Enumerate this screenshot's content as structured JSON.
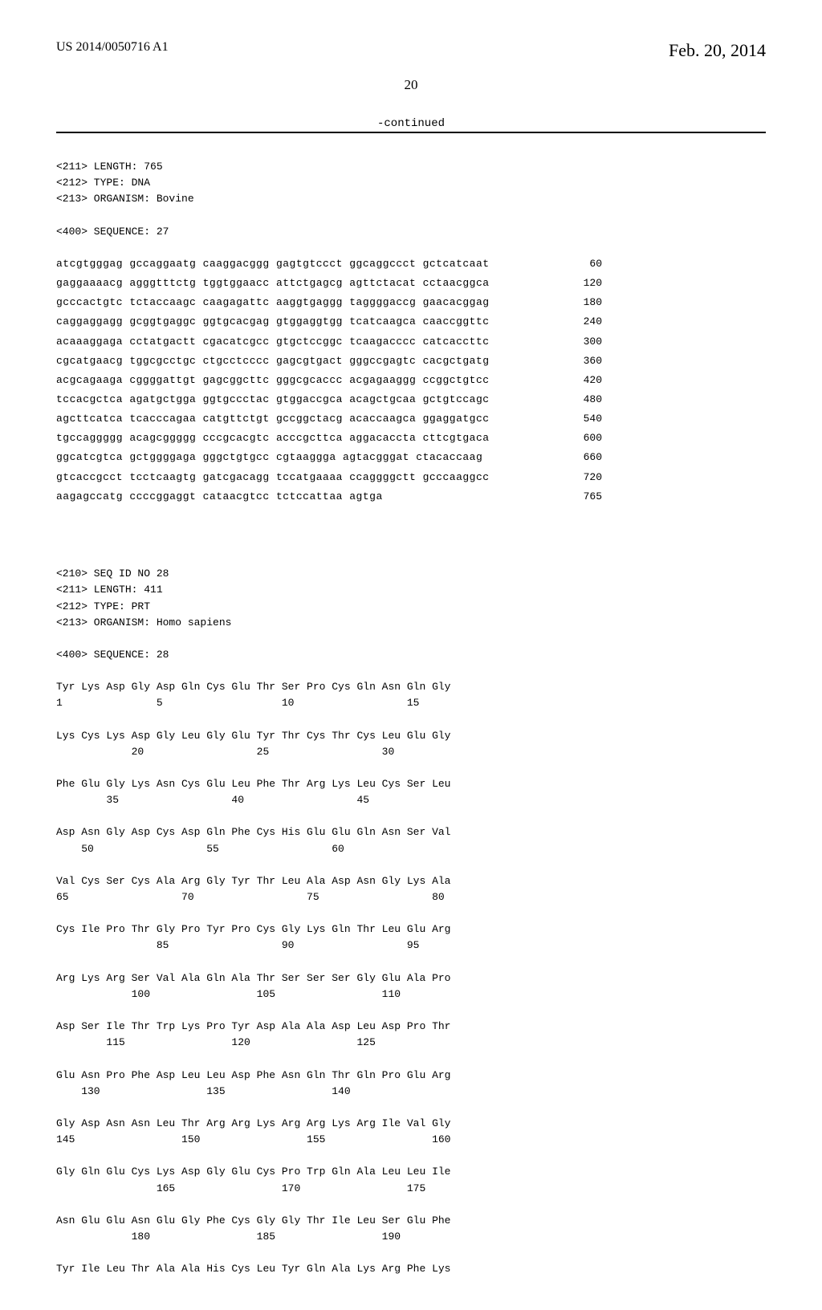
{
  "header": {
    "pub_id": "US 2014/0050716 A1",
    "pub_date": "Feb. 20, 2014",
    "page_number": "20"
  },
  "continued_label": "-continued",
  "seq27_meta": {
    "l1": "<211> LENGTH: 765",
    "l2": "<212> TYPE: DNA",
    "l3": "<213> ORGANISM: Bovine",
    "l4": "<400> SEQUENCE: 27"
  },
  "dna_lines": [
    {
      "s": "atcgtgggag gccaggaatg caaggacggg gagtgtccct ggcaggccct gctcatcaat",
      "p": "60"
    },
    {
      "s": "gaggaaaacg agggtttctg tggtggaacc attctgagcg agttctacat cctaacggca",
      "p": "120"
    },
    {
      "s": "gcccactgtc tctaccaagc caagagattc aaggtgaggg taggggaccg gaacacggag",
      "p": "180"
    },
    {
      "s": "caggaggagg gcggtgaggc ggtgcacgag gtggaggtgg tcatcaagca caaccggttc",
      "p": "240"
    },
    {
      "s": "acaaaggaga cctatgactt cgacatcgcc gtgctccggc tcaagacccc catcaccttc",
      "p": "300"
    },
    {
      "s": "cgcatgaacg tggcgcctgc ctgcctcccc gagcgtgact gggccgagtc cacgctgatg",
      "p": "360"
    },
    {
      "s": "acgcagaaga cggggattgt gagcggcttc gggcgcaccc acgagaaggg ccggctgtcc",
      "p": "420"
    },
    {
      "s": "tccacgctca agatgctgga ggtgccctac gtggaccgca acagctgcaa gctgtccagc",
      "p": "480"
    },
    {
      "s": "agcttcatca tcacccagaa catgttctgt gccggctacg acaccaagca ggaggatgcc",
      "p": "540"
    },
    {
      "s": "tgccaggggg acagcggggg cccgcacgtc acccgcttca aggacaccta cttcgtgaca",
      "p": "600"
    },
    {
      "s": "ggcatcgtca gctggggaga gggctgtgcc cgtaaggga agtacgggat ctacaccaag",
      "p": "660"
    },
    {
      "s": "gtcaccgcct tcctcaagtg gatcgacagg tccatgaaaa ccaggggctt gcccaaggcc",
      "p": "720"
    },
    {
      "s": "aagagccatg ccccggaggt cataacgtcc tctccattaa agtga",
      "p": "765"
    }
  ],
  "seq28_meta": {
    "l1": "<210> SEQ ID NO 28",
    "l2": "<211> LENGTH: 411",
    "l3": "<212> TYPE: PRT",
    "l4": "<213> ORGANISM: Homo sapiens",
    "l5": "<400> SEQUENCE: 28"
  },
  "prot_lines": [
    "Tyr Lys Asp Gly Asp Gln Cys Glu Thr Ser Pro Cys Gln Asn Gln Gly",
    "1               5                   10                  15",
    "",
    "Lys Cys Lys Asp Gly Leu Gly Glu Tyr Thr Cys Thr Cys Leu Glu Gly",
    "            20                  25                  30",
    "",
    "Phe Glu Gly Lys Asn Cys Glu Leu Phe Thr Arg Lys Leu Cys Ser Leu",
    "        35                  40                  45",
    "",
    "Asp Asn Gly Asp Cys Asp Gln Phe Cys His Glu Glu Gln Asn Ser Val",
    "    50                  55                  60",
    "",
    "Val Cys Ser Cys Ala Arg Gly Tyr Thr Leu Ala Asp Asn Gly Lys Ala",
    "65                  70                  75                  80",
    "",
    "Cys Ile Pro Thr Gly Pro Tyr Pro Cys Gly Lys Gln Thr Leu Glu Arg",
    "                85                  90                  95",
    "",
    "Arg Lys Arg Ser Val Ala Gln Ala Thr Ser Ser Ser Gly Glu Ala Pro",
    "            100                 105                 110",
    "",
    "Asp Ser Ile Thr Trp Lys Pro Tyr Asp Ala Ala Asp Leu Asp Pro Thr",
    "        115                 120                 125",
    "",
    "Glu Asn Pro Phe Asp Leu Leu Asp Phe Asn Gln Thr Gln Pro Glu Arg",
    "    130                 135                 140",
    "",
    "Gly Asp Asn Asn Leu Thr Arg Arg Lys Arg Arg Lys Arg Ile Val Gly",
    "145                 150                 155                 160",
    "",
    "Gly Gln Glu Cys Lys Asp Gly Glu Cys Pro Trp Gln Ala Leu Leu Ile",
    "                165                 170                 175",
    "",
    "Asn Glu Glu Asn Glu Gly Phe Cys Gly Gly Thr Ile Leu Ser Glu Phe",
    "            180                 185                 190",
    "",
    "Tyr Ile Leu Thr Ala Ala His Cys Leu Tyr Gln Ala Lys Arg Phe Lys"
  ]
}
